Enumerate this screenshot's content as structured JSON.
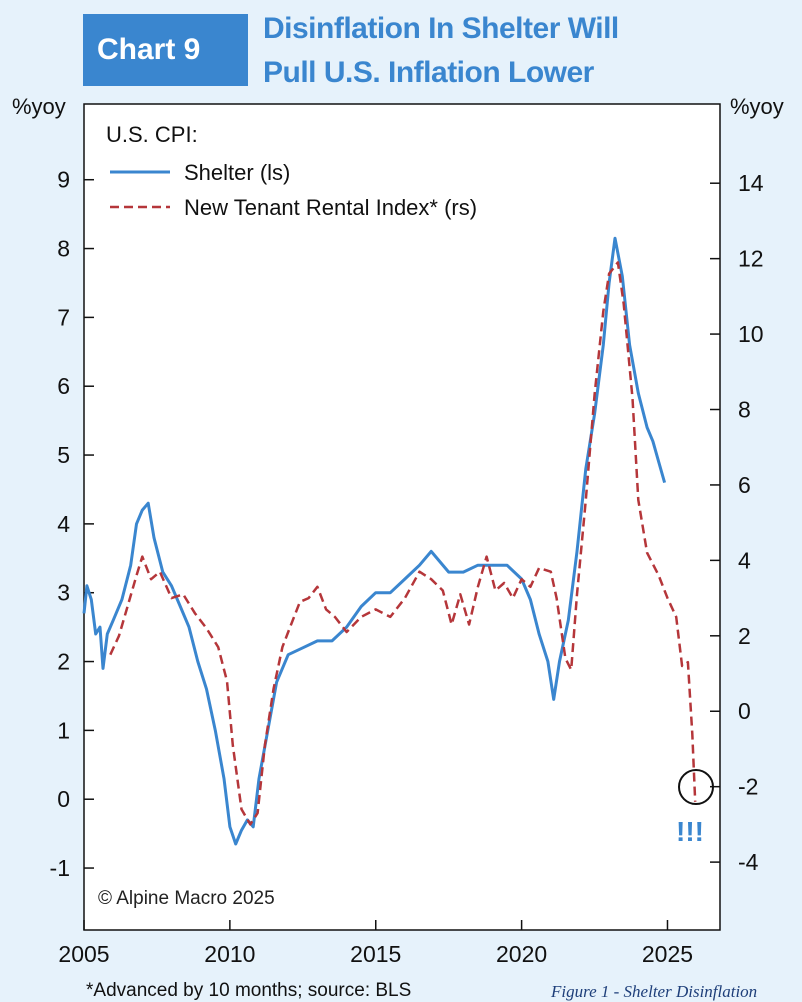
{
  "header": {
    "badge": "Chart 9",
    "title_line_1": "Disinflation In Shelter Will",
    "title_line_2": "Pull U.S. Inflation Lower"
  },
  "colors": {
    "badge_bg": "#3a86cf",
    "title": "#3a86cf",
    "shelter": "#3a86cf",
    "new_tenant": "#b5363a",
    "background": "#e6f2fb"
  },
  "caption": "Figure 1 - Shelter Disinflation",
  "chart_data": {
    "type": "line",
    "title": "Disinflation In Shelter Will Pull U.S. Inflation Lower",
    "left_axis_unit": "%yoy",
    "right_axis_unit": "%yoy",
    "xlim": [
      2005,
      2026.8
    ],
    "ylim_left": [
      -1.9,
      10.1
    ],
    "ylim_right": [
      -5.8,
      16.1
    ],
    "left_ticks": [
      -1,
      0,
      1,
      2,
      3,
      4,
      5,
      6,
      7,
      8,
      9
    ],
    "right_ticks": [
      -4,
      -2,
      0,
      2,
      4,
      6,
      8,
      10,
      12,
      14
    ],
    "x_ticks": [
      2005,
      2010,
      2015,
      2020,
      2025
    ],
    "grid": false,
    "legend_title": "U.S. CPI:",
    "legend_position": "top-left",
    "credit": "© Alpine Macro 2025",
    "footnote": "*Advanced by 10 months; source: BLS",
    "annotation": "!!!",
    "series": [
      {
        "name": "Shelter (ls)",
        "axis": "left",
        "style": "solid",
        "points": [
          [
            2005.0,
            2.7
          ],
          [
            2005.1,
            3.1
          ],
          [
            2005.25,
            2.9
          ],
          [
            2005.4,
            2.4
          ],
          [
            2005.55,
            2.5
          ],
          [
            2005.65,
            1.9
          ],
          [
            2005.8,
            2.4
          ],
          [
            2006.0,
            2.6
          ],
          [
            2006.3,
            2.9
          ],
          [
            2006.6,
            3.4
          ],
          [
            2006.8,
            4.0
          ],
          [
            2007.0,
            4.2
          ],
          [
            2007.2,
            4.3
          ],
          [
            2007.4,
            3.8
          ],
          [
            2007.7,
            3.3
          ],
          [
            2008.0,
            3.1
          ],
          [
            2008.3,
            2.8
          ],
          [
            2008.6,
            2.5
          ],
          [
            2008.9,
            2.0
          ],
          [
            2009.2,
            1.6
          ],
          [
            2009.5,
            1.0
          ],
          [
            2009.8,
            0.3
          ],
          [
            2010.0,
            -0.4
          ],
          [
            2010.2,
            -0.65
          ],
          [
            2010.4,
            -0.45
          ],
          [
            2010.6,
            -0.3
          ],
          [
            2010.8,
            -0.4
          ],
          [
            2011.0,
            0.3
          ],
          [
            2011.3,
            1.0
          ],
          [
            2011.6,
            1.7
          ],
          [
            2012.0,
            2.1
          ],
          [
            2012.5,
            2.2
          ],
          [
            2013.0,
            2.3
          ],
          [
            2013.5,
            2.3
          ],
          [
            2014.0,
            2.5
          ],
          [
            2014.5,
            2.8
          ],
          [
            2015.0,
            3.0
          ],
          [
            2015.5,
            3.0
          ],
          [
            2016.0,
            3.2
          ],
          [
            2016.5,
            3.4
          ],
          [
            2016.9,
            3.6
          ],
          [
            2017.5,
            3.3
          ],
          [
            2018.0,
            3.3
          ],
          [
            2018.5,
            3.4
          ],
          [
            2019.0,
            3.4
          ],
          [
            2019.5,
            3.4
          ],
          [
            2020.0,
            3.2
          ],
          [
            2020.3,
            2.9
          ],
          [
            2020.6,
            2.4
          ],
          [
            2020.9,
            2.0
          ],
          [
            2021.1,
            1.45
          ],
          [
            2021.3,
            2.0
          ],
          [
            2021.6,
            2.6
          ],
          [
            2021.9,
            3.6
          ],
          [
            2022.2,
            4.8
          ],
          [
            2022.5,
            5.6
          ],
          [
            2022.8,
            6.6
          ],
          [
            2023.0,
            7.5
          ],
          [
            2023.2,
            8.15
          ],
          [
            2023.45,
            7.6
          ],
          [
            2023.7,
            6.6
          ],
          [
            2024.0,
            5.9
          ],
          [
            2024.3,
            5.4
          ],
          [
            2024.5,
            5.2
          ],
          [
            2024.7,
            4.9
          ],
          [
            2024.9,
            4.6
          ]
        ]
      },
      {
        "name": "New Tenant Rental Index* (rs)",
        "axis": "right",
        "style": "dashed",
        "points": [
          [
            2005.9,
            1.5
          ],
          [
            2006.2,
            2.0
          ],
          [
            2006.5,
            2.8
          ],
          [
            2006.8,
            3.6
          ],
          [
            2007.0,
            4.1
          ],
          [
            2007.3,
            3.5
          ],
          [
            2007.6,
            3.7
          ],
          [
            2008.0,
            3.0
          ],
          [
            2008.4,
            3.1
          ],
          [
            2008.8,
            2.6
          ],
          [
            2009.2,
            2.2
          ],
          [
            2009.6,
            1.7
          ],
          [
            2009.9,
            0.8
          ],
          [
            2010.1,
            -0.9
          ],
          [
            2010.4,
            -2.6
          ],
          [
            2010.7,
            -3.0
          ],
          [
            2010.95,
            -2.7
          ],
          [
            2011.2,
            -0.9
          ],
          [
            2011.5,
            0.6
          ],
          [
            2011.8,
            1.7
          ],
          [
            2012.0,
            2.1
          ],
          [
            2012.4,
            2.9
          ],
          [
            2012.7,
            3.0
          ],
          [
            2013.0,
            3.3
          ],
          [
            2013.3,
            2.7
          ],
          [
            2013.6,
            2.5
          ],
          [
            2014.0,
            2.1
          ],
          [
            2014.5,
            2.5
          ],
          [
            2015.0,
            2.7
          ],
          [
            2015.5,
            2.5
          ],
          [
            2016.0,
            3.0
          ],
          [
            2016.5,
            3.7
          ],
          [
            2016.9,
            3.5
          ],
          [
            2017.3,
            3.2
          ],
          [
            2017.6,
            2.3
          ],
          [
            2017.9,
            3.1
          ],
          [
            2018.2,
            2.3
          ],
          [
            2018.5,
            3.3
          ],
          [
            2018.8,
            4.1
          ],
          [
            2019.1,
            3.2
          ],
          [
            2019.4,
            3.4
          ],
          [
            2019.7,
            3.0
          ],
          [
            2020.0,
            3.5
          ],
          [
            2020.3,
            3.3
          ],
          [
            2020.6,
            3.8
          ],
          [
            2021.0,
            3.7
          ],
          [
            2021.2,
            3.0
          ],
          [
            2021.5,
            1.4
          ],
          [
            2021.7,
            1.1
          ],
          [
            2021.9,
            3.1
          ],
          [
            2022.2,
            5.6
          ],
          [
            2022.5,
            8.4
          ],
          [
            2022.8,
            10.6
          ],
          [
            2023.0,
            11.6
          ],
          [
            2023.3,
            11.9
          ],
          [
            2023.5,
            10.8
          ],
          [
            2023.8,
            8.3
          ],
          [
            2024.0,
            5.6
          ],
          [
            2024.3,
            4.2
          ],
          [
            2024.7,
            3.6
          ],
          [
            2025.0,
            3.0
          ],
          [
            2025.3,
            2.5
          ],
          [
            2025.5,
            1.2
          ],
          [
            2025.7,
            1.3
          ],
          [
            2025.85,
            -0.6
          ],
          [
            2025.95,
            -2.4
          ]
        ]
      }
    ]
  }
}
